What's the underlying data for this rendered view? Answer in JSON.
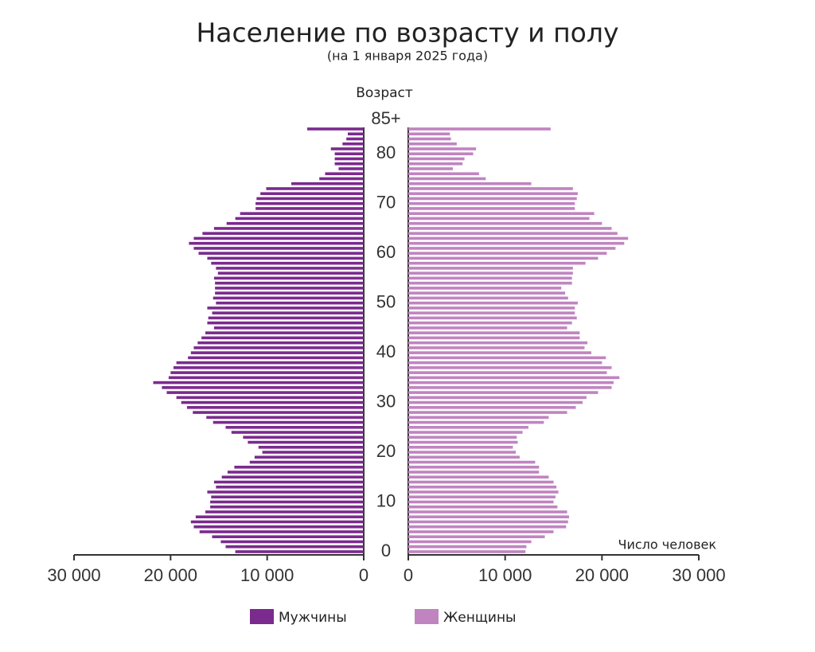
{
  "chart_data": {
    "type": "pyramid",
    "title": "Население по возрасту и полу",
    "subtitle": "(на 1 января 2025 года)",
    "y_label": "Возраст",
    "x_label": "Число человек",
    "ylim": [
      0,
      85
    ],
    "yticks": [
      0,
      10,
      20,
      30,
      40,
      50,
      60,
      70,
      80,
      {
        "value": 85,
        "label": "85+"
      }
    ],
    "xlim": [
      0,
      30000
    ],
    "xticks": [
      {
        "value": 0,
        "label": "0"
      },
      {
        "value": 10000,
        "label": "10 000"
      },
      {
        "value": 20000,
        "label": "20 000"
      },
      {
        "value": 30000,
        "label": "30 000"
      }
    ],
    "series": [
      {
        "name": "Мужчины",
        "color": "#7b2a8e",
        "side": "left",
        "values": [
          13300,
          14300,
          14800,
          15700,
          17000,
          17600,
          17900,
          17400,
          16400,
          15900,
          15900,
          15800,
          16200,
          15300,
          15500,
          14700,
          14100,
          13400,
          11800,
          11300,
          10500,
          10900,
          12000,
          12500,
          13700,
          14300,
          15600,
          16300,
          17700,
          18300,
          18900,
          19400,
          20400,
          20900,
          21800,
          20200,
          20000,
          19700,
          19400,
          18200,
          17900,
          17600,
          17200,
          16800,
          16400,
          15500,
          16200,
          16100,
          15700,
          16200,
          15300,
          15600,
          15400,
          15400,
          15400,
          15500,
          15100,
          15300,
          15800,
          16200,
          17100,
          17600,
          18100,
          17600,
          16700,
          15500,
          14200,
          13300,
          12800,
          11200,
          11200,
          11100,
          10700,
          10100,
          7500,
          4600,
          4000,
          2600,
          3000,
          3000,
          3000,
          3400,
          2200,
          1800,
          1650,
          5850
        ]
      },
      {
        "name": "Женщины",
        "color": "#c084c0",
        "side": "right",
        "values": [
          12100,
          12200,
          12700,
          14100,
          15000,
          16300,
          16500,
          16600,
          16400,
          15400,
          15000,
          15200,
          15500,
          15300,
          15000,
          14500,
          13500,
          13500,
          13100,
          11500,
          11100,
          10800,
          11300,
          11200,
          11800,
          12400,
          14000,
          14500,
          16400,
          17300,
          18000,
          18400,
          19600,
          21000,
          21200,
          21800,
          20500,
          21000,
          20000,
          20400,
          18900,
          18200,
          18500,
          17700,
          17700,
          16400,
          16900,
          17400,
          17200,
          17200,
          17500,
          16500,
          16200,
          15800,
          16900,
          16900,
          17000,
          17000,
          18300,
          19600,
          20500,
          21400,
          22300,
          22700,
          21600,
          21000,
          20000,
          18700,
          19200,
          17200,
          17200,
          17400,
          17500,
          17000,
          12700,
          8000,
          7300,
          4600,
          5600,
          5800,
          6700,
          7000,
          5000,
          4400,
          4300,
          14700
        ]
      }
    ]
  }
}
